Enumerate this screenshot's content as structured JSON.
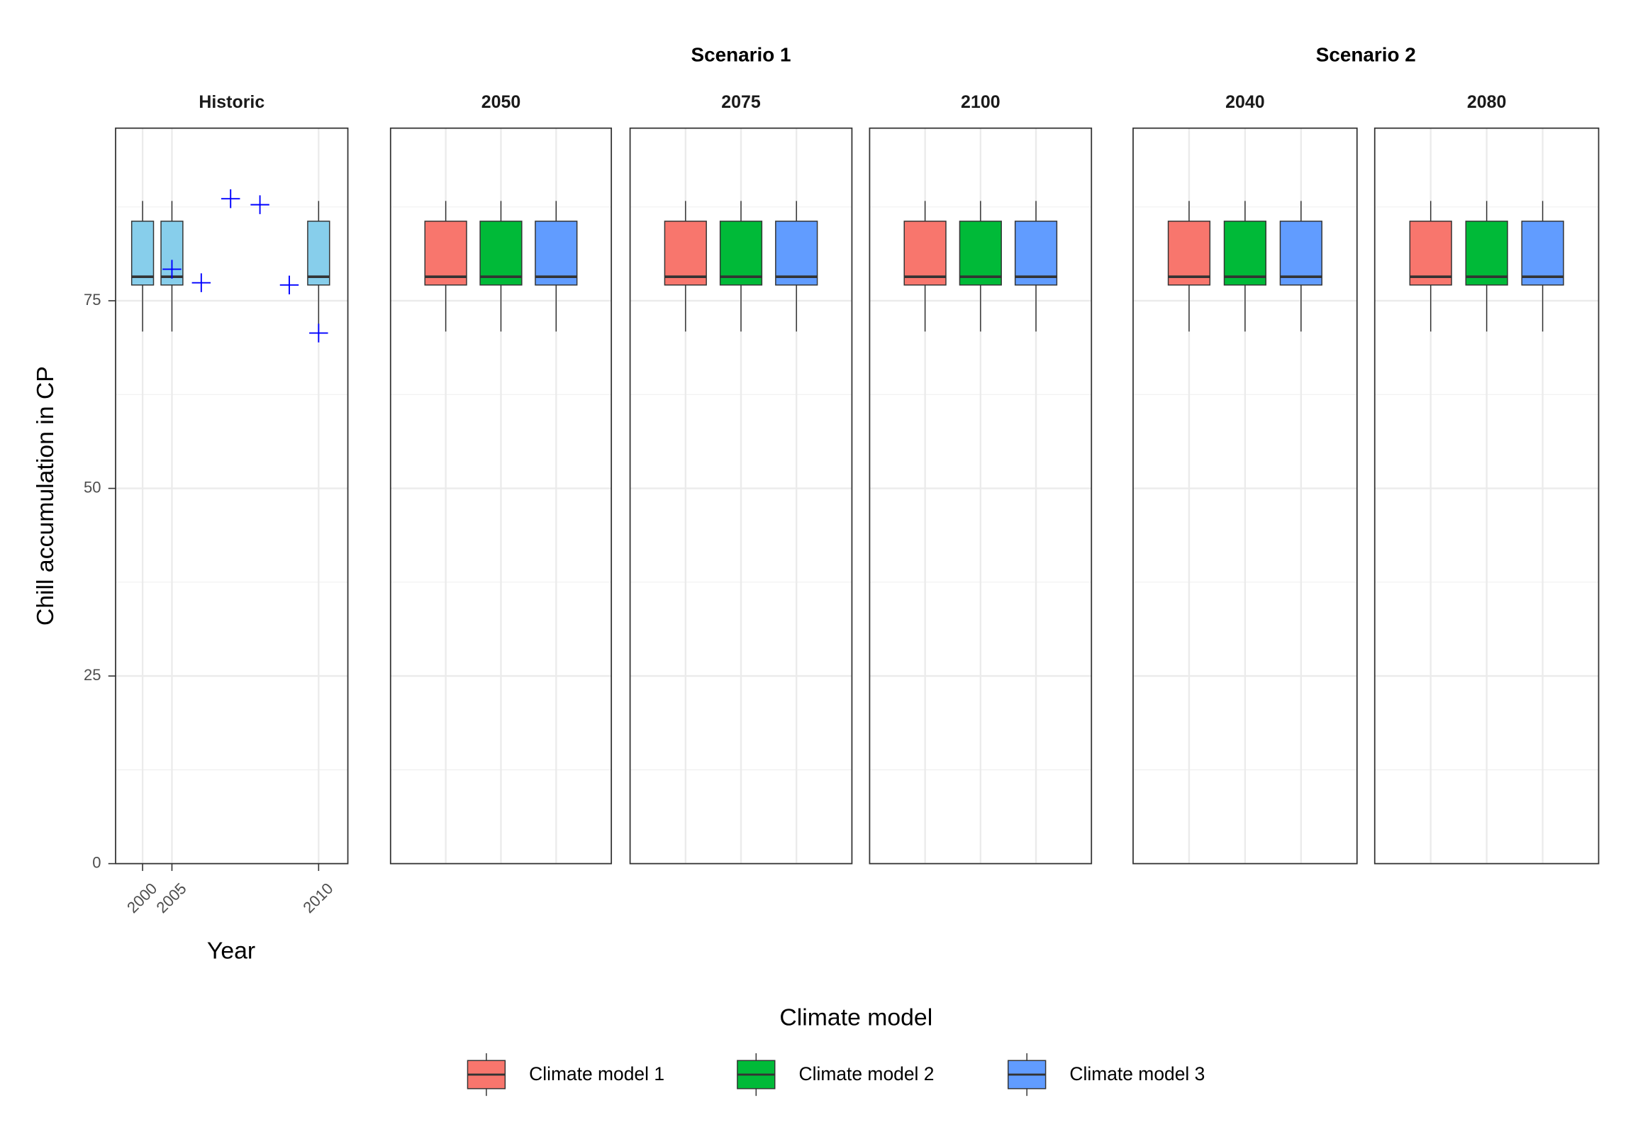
{
  "chart_data": {
    "type": "boxplot",
    "y_label": "Chill accumulation in CP",
    "ylim": [
      0,
      98
    ],
    "yticks": [
      0,
      25,
      50,
      75
    ],
    "grid": true,
    "legend": {
      "title": "Climate model",
      "position": "bottom"
    },
    "series": [
      {
        "name": "Climate model 1",
        "color": "#f8766d"
      },
      {
        "name": "Climate model 2",
        "color": "#00ba38"
      },
      {
        "name": "Climate model 3",
        "color": "#619cff"
      }
    ],
    "historic": {
      "title": "Historic",
      "x_label": "Year",
      "categories": [
        "2000",
        "2005",
        null,
        null,
        null,
        null,
        "2010"
      ],
      "box_color": "#87ceeb",
      "point_color": "#0000ff",
      "boxes": [
        {
          "low": 70.9,
          "q1": 77.1,
          "median": 78.2,
          "q3": 85.6,
          "high": 88.3
        },
        {
          "low": 70.9,
          "q1": 77.1,
          "median": 78.2,
          "q3": 85.6,
          "high": 88.3
        },
        null,
        null,
        null,
        null,
        {
          "low": 70.9,
          "q1": 77.1,
          "median": 78.2,
          "q3": 85.6,
          "high": 88.3
        }
      ],
      "points": [
        null,
        79.2,
        77.4,
        88.6,
        87.8,
        77.1,
        70.7
      ]
    },
    "scenarios": [
      {
        "title": "Scenario 1",
        "panels": [
          {
            "title": "2050",
            "boxes": [
              {
                "low": 70.9,
                "q1": 77.1,
                "median": 78.2,
                "q3": 85.6,
                "high": 88.3
              },
              {
                "low": 70.9,
                "q1": 77.1,
                "median": 78.2,
                "q3": 85.6,
                "high": 88.3
              },
              {
                "low": 70.9,
                "q1": 77.1,
                "median": 78.2,
                "q3": 85.6,
                "high": 88.3
              }
            ]
          },
          {
            "title": "2075",
            "boxes": [
              {
                "low": 70.9,
                "q1": 77.1,
                "median": 78.2,
                "q3": 85.6,
                "high": 88.3
              },
              {
                "low": 70.9,
                "q1": 77.1,
                "median": 78.2,
                "q3": 85.6,
                "high": 88.3
              },
              {
                "low": 70.9,
                "q1": 77.1,
                "median": 78.2,
                "q3": 85.6,
                "high": 88.3
              }
            ]
          },
          {
            "title": "2100",
            "boxes": [
              {
                "low": 70.9,
                "q1": 77.1,
                "median": 78.2,
                "q3": 85.6,
                "high": 88.3
              },
              {
                "low": 70.9,
                "q1": 77.1,
                "median": 78.2,
                "q3": 85.6,
                "high": 88.3
              },
              {
                "low": 70.9,
                "q1": 77.1,
                "median": 78.2,
                "q3": 85.6,
                "high": 88.3
              }
            ]
          }
        ]
      },
      {
        "title": "Scenario 2",
        "panels": [
          {
            "title": "2040",
            "boxes": [
              {
                "low": 70.9,
                "q1": 77.1,
                "median": 78.2,
                "q3": 85.6,
                "high": 88.3
              },
              {
                "low": 70.9,
                "q1": 77.1,
                "median": 78.2,
                "q3": 85.6,
                "high": 88.3
              },
              {
                "low": 70.9,
                "q1": 77.1,
                "median": 78.2,
                "q3": 85.6,
                "high": 88.3
              }
            ]
          },
          {
            "title": "2080",
            "boxes": [
              {
                "low": 70.9,
                "q1": 77.1,
                "median": 78.2,
                "q3": 85.6,
                "high": 88.3
              },
              {
                "low": 70.9,
                "q1": 77.1,
                "median": 78.2,
                "q3": 85.6,
                "high": 88.3
              },
              {
                "low": 70.9,
                "q1": 77.1,
                "median": 78.2,
                "q3": 85.6,
                "high": 88.3
              }
            ]
          }
        ]
      }
    ]
  }
}
